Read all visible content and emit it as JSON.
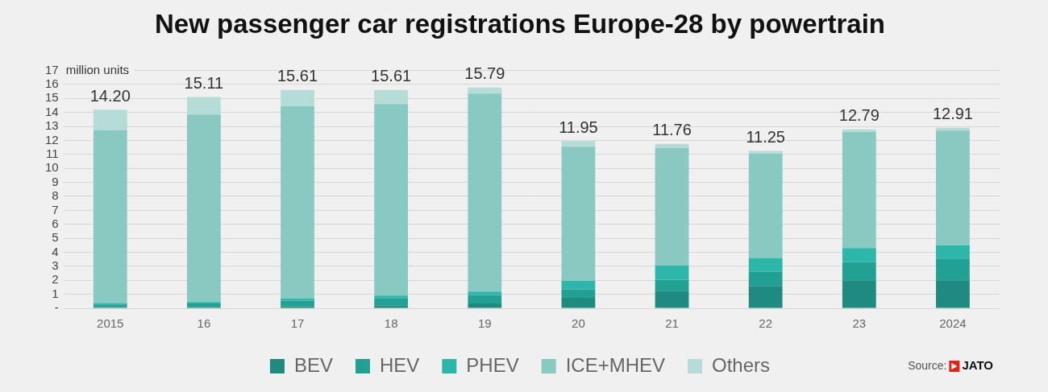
{
  "chart_data": {
    "type": "bar",
    "title": "New passenger car registrations Europe-28 by powertrain",
    "y_label": "million units",
    "categories": [
      "2015",
      "16",
      "17",
      "18",
      "19",
      "20",
      "21",
      "22",
      "23",
      "2024"
    ],
    "series": [
      {
        "name": "BEV",
        "color": "#1f8a7f",
        "values": [
          0.08,
          0.1,
          0.15,
          0.2,
          0.35,
          0.75,
          1.25,
          1.6,
          2.0,
          2.0
        ]
      },
      {
        "name": "HEV",
        "color": "#22a094",
        "values": [
          0.2,
          0.25,
          0.4,
          0.5,
          0.6,
          0.6,
          0.8,
          1.0,
          1.3,
          1.55
        ]
      },
      {
        "name": "PHEV",
        "color": "#2db7ab",
        "values": [
          0.1,
          0.1,
          0.15,
          0.2,
          0.25,
          0.6,
          1.0,
          1.0,
          1.0,
          0.95
        ]
      },
      {
        "name": "ICE+MHEV",
        "color": "#88c9c2",
        "values": [
          12.37,
          13.4,
          13.75,
          13.7,
          14.15,
          9.6,
          8.4,
          7.45,
          8.3,
          8.2
        ]
      },
      {
        "name": "Others",
        "color": "#b6dcd8",
        "values": [
          1.45,
          1.26,
          1.16,
          1.01,
          0.44,
          0.4,
          0.31,
          0.2,
          0.19,
          0.21
        ]
      }
    ],
    "totals": [
      14.2,
      15.11,
      15.61,
      15.61,
      15.79,
      11.95,
      11.76,
      11.25,
      12.79,
      12.91
    ],
    "total_labels": [
      "14.20",
      "15.11",
      "15.61",
      "15.61",
      "15.79",
      "11.95",
      "11.76",
      "11.25",
      "12.79",
      "12.91"
    ],
    "ylim": [
      0,
      17
    ],
    "yticks": [
      {
        "value": 0,
        "label": "-"
      },
      1,
      2,
      3,
      4,
      5,
      6,
      7,
      8,
      9,
      10,
      11,
      12,
      13,
      14,
      15,
      16,
      17
    ],
    "stacked": true,
    "grid": true,
    "legend": "bottom",
    "source_label": "Source:",
    "source_name": "JATO"
  }
}
